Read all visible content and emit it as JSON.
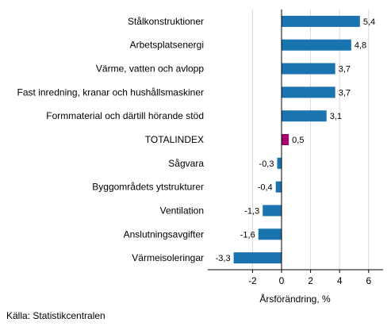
{
  "chart_data": {
    "type": "bar",
    "orientation": "horizontal",
    "categories": [
      "Stålkonstruktioner",
      "Arbetsplatsenergi",
      "Värme, vatten och avlopp",
      "Fast inredning, kranar och hushållsmaskiner",
      "Formmaterial och därtill hörande stöd",
      "TOTALINDEX",
      "Sågvara",
      "Byggområdets ytstrukturer",
      "Ventilation",
      "Anslutningsavgifter",
      "Värmeisoleringar"
    ],
    "values": [
      5.4,
      4.8,
      3.7,
      3.7,
      3.1,
      0.5,
      -0.3,
      -0.4,
      -1.3,
      -1.6,
      -3.3
    ],
    "value_labels": [
      "5,4",
      "4,8",
      "3,7",
      "3,7",
      "3,1",
      "0,5",
      "-0,3",
      "-0,4",
      "-1,3",
      "-1,6",
      "-3,3"
    ],
    "highlight_category": "TOTALINDEX",
    "xlabel": "Årsförändring, %",
    "ylabel": "",
    "xlim": [
      -5,
      7
    ],
    "xticks": [
      -2,
      0,
      2,
      4,
      6
    ],
    "xtick_labels": [
      "-2",
      "0",
      "2",
      "4",
      "6"
    ],
    "grid": true,
    "colors": {
      "bar": "#1a74b0",
      "highlight": "#a4006e",
      "grid": "#d9d9d9",
      "axis": "#000000"
    }
  },
  "footer": {
    "source": "Källa: Statistikcentralen"
  }
}
